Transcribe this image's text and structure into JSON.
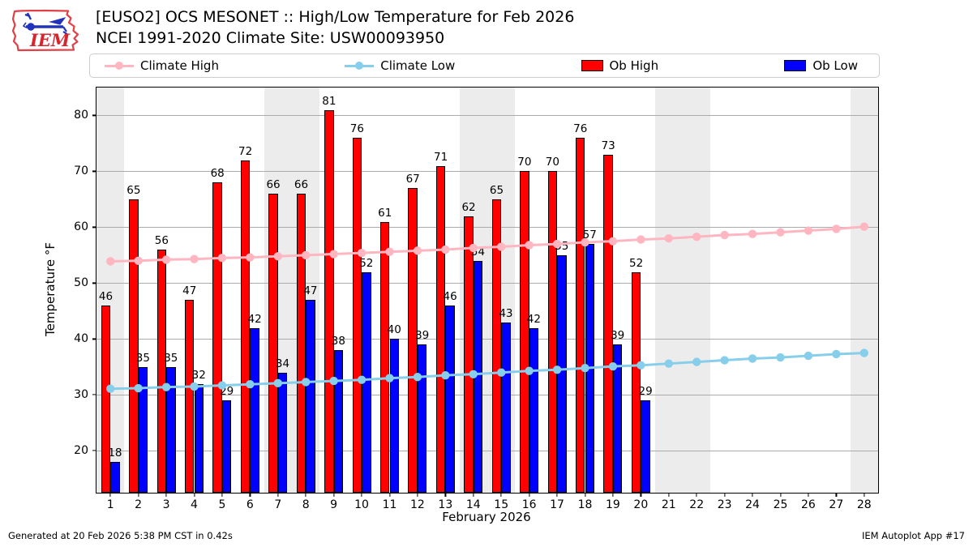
{
  "header": {
    "title_line1": "[EUSO2] OCS MESONET :: High/Low Temperature for Feb 2026",
    "title_line2": "NCEI 1991-2020 Climate Site: USW00093950",
    "logo_text": "IEM"
  },
  "legend": {
    "items": [
      {
        "label": "Climate High",
        "type": "line",
        "color": "#ffb6c1"
      },
      {
        "label": "Climate Low",
        "type": "line",
        "color": "#87ceeb"
      },
      {
        "label": "Ob High",
        "type": "patch",
        "color": "#ff0000"
      },
      {
        "label": "Ob Low",
        "type": "patch",
        "color": "#0000ff"
      }
    ]
  },
  "chart_data": {
    "type": "bar",
    "title": "[EUSO2] OCS MESONET :: High/Low Temperature for Feb 2026",
    "subtitle": "NCEI 1991-2020 Climate Site: USW00093950",
    "xlabel": "February 2026",
    "ylabel": "Temperature °F",
    "ylim": [
      12.5,
      85
    ],
    "yticks": [
      20,
      30,
      40,
      50,
      60,
      70,
      80
    ],
    "grid": true,
    "legend_position": "top",
    "days": [
      1,
      2,
      3,
      4,
      5,
      6,
      7,
      8,
      9,
      10,
      11,
      12,
      13,
      14,
      15,
      16,
      17,
      18,
      19,
      20,
      21,
      22,
      23,
      24,
      25,
      26,
      27,
      28
    ],
    "weekend_shaded_days": [
      1,
      7,
      8,
      14,
      15,
      21,
      22,
      28
    ],
    "series": [
      {
        "name": "Ob High",
        "type": "bar",
        "color": "#ff0000",
        "values": [
          46,
          65,
          56,
          47,
          68,
          72,
          66,
          66,
          81,
          76,
          61,
          67,
          71,
          62,
          65,
          70,
          70,
          76,
          73,
          52,
          null,
          null,
          null,
          null,
          null,
          null,
          null,
          null
        ]
      },
      {
        "name": "Ob Low",
        "type": "bar",
        "color": "#0000ff",
        "values": [
          18,
          35,
          35,
          32,
          29,
          42,
          34,
          47,
          38,
          52,
          40,
          39,
          46,
          54,
          43,
          42,
          55,
          57,
          39,
          29,
          null,
          null,
          null,
          null,
          null,
          null,
          null,
          null
        ]
      },
      {
        "name": "Climate High",
        "type": "line",
        "color": "#ffb6c1",
        "values": [
          53.9,
          54.0,
          54.2,
          54.3,
          54.5,
          54.6,
          54.8,
          55.0,
          55.2,
          55.4,
          55.6,
          55.8,
          56.0,
          56.3,
          56.5,
          56.8,
          57.0,
          57.3,
          57.5,
          57.8,
          58.0,
          58.3,
          58.6,
          58.8,
          59.1,
          59.4,
          59.7,
          60.1
        ]
      },
      {
        "name": "Climate Low",
        "type": "line",
        "color": "#87ceeb",
        "values": [
          31.1,
          31.2,
          31.4,
          31.5,
          31.7,
          31.9,
          32.1,
          32.3,
          32.5,
          32.7,
          33.0,
          33.2,
          33.5,
          33.7,
          34.0,
          34.3,
          34.5,
          34.8,
          35.1,
          35.3,
          35.6,
          35.9,
          36.2,
          36.5,
          36.7,
          37.0,
          37.3,
          37.5
        ]
      }
    ]
  },
  "footer": {
    "left": "Generated at 20 Feb 2026 5:38 PM CST in 0.42s",
    "right": "IEM Autoplot App #17"
  }
}
